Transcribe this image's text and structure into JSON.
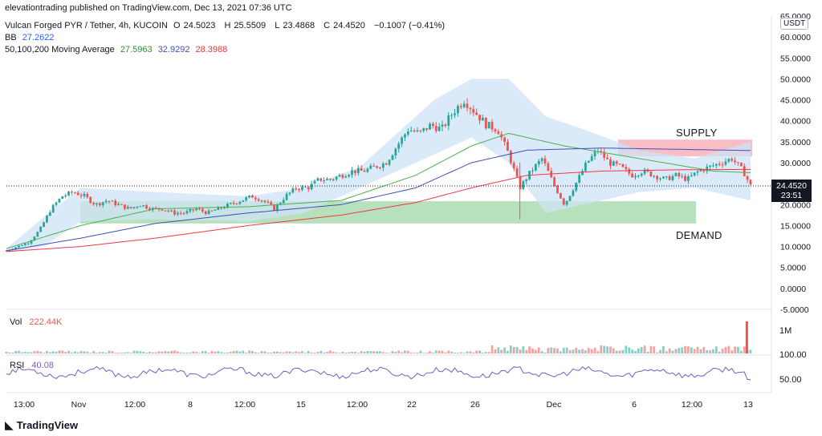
{
  "header": {
    "publisher_line": "elevationtrading published on TradingView.com, Dec 13, 2021 07:36 UTC",
    "symbol": "Vulcan Forged PYR / Tether, 4h, KUCOIN",
    "ohlc": {
      "o_label": "O",
      "o": "24.5023",
      "h_label": "H",
      "h": "25.5509",
      "l_label": "L",
      "l": "23.4868",
      "c_label": "C",
      "c": "24.4520",
      "change": "−0.1007 (−0.41%)"
    },
    "bb_label": "BB",
    "bb_value": "27.2622",
    "ma_label": "50,100,200 Moving Average",
    "ma50": "27.5963",
    "ma100": "32.9292",
    "ma200": "28.3988"
  },
  "currency_badge": "USDT",
  "current_price": "24.4520",
  "countdown": "23:51",
  "zones": {
    "supply": "SUPPLY",
    "demand": "DEMAND"
  },
  "volume": {
    "label": "Vol",
    "value": "222.44K",
    "axis_labels": [
      "1M",
      "100.00"
    ]
  },
  "rsi": {
    "label": "RSI",
    "value": "40.08",
    "axis_label": "50.00"
  },
  "logo": "TradingView",
  "colors": {
    "bb_value": "#2962ff",
    "ma50": "#4caf50",
    "ma100": "#3f51b5",
    "ma200": "#f23645",
    "up": "#26a69a",
    "down": "#ef5350",
    "bb_fill": "#cfe3f6",
    "supply": "#f7b3b8",
    "demand": "#a9dcb0",
    "rsi_line": "#7e57c2"
  },
  "chart_data": {
    "type": "candlestick",
    "x_ticks": [
      "13:00",
      "Nov",
      "12:00",
      "8",
      "12:00",
      "15",
      "12:00",
      "22",
      "26",
      "Dec",
      "6",
      "12:00",
      "13"
    ],
    "y_ticks": [
      -5,
      0,
      5,
      10,
      15,
      20,
      25,
      30,
      35,
      40,
      45,
      50,
      55,
      60,
      65
    ],
    "y_tick_labels": [
      "-5.0000",
      "0.0000",
      "5.0000",
      "10.0000",
      "15.0000",
      "20.0000",
      "25.0000",
      "30.0000",
      "35.0000",
      "40.0000",
      "45.0000",
      "50.0000",
      "55.0000",
      "60.0000",
      "65.0000"
    ],
    "ylim": [
      -5,
      65
    ],
    "close_path": [
      [
        0,
        9
      ],
      [
        6,
        10
      ],
      [
        12,
        11
      ],
      [
        18,
        14
      ],
      [
        24,
        19
      ],
      [
        30,
        22
      ],
      [
        36,
        23
      ],
      [
        42,
        22
      ],
      [
        48,
        20
      ],
      [
        54,
        21
      ],
      [
        60,
        20
      ],
      [
        66,
        19
      ],
      [
        72,
        20
      ],
      [
        78,
        19
      ],
      [
        84,
        19
      ],
      [
        90,
        18
      ],
      [
        96,
        18
      ],
      [
        102,
        19
      ],
      [
        108,
        18
      ],
      [
        114,
        19
      ],
      [
        120,
        20
      ],
      [
        126,
        21
      ],
      [
        132,
        22
      ],
      [
        138,
        21
      ],
      [
        144,
        19
      ],
      [
        150,
        22
      ],
      [
        156,
        24
      ],
      [
        162,
        24
      ],
      [
        168,
        26
      ],
      [
        174,
        26
      ],
      [
        180,
        27
      ],
      [
        186,
        28
      ],
      [
        192,
        28
      ],
      [
        198,
        29
      ],
      [
        204,
        30
      ],
      [
        210,
        34
      ],
      [
        216,
        38
      ],
      [
        222,
        37
      ],
      [
        228,
        39
      ],
      [
        234,
        38
      ],
      [
        240,
        42
      ],
      [
        246,
        45
      ],
      [
        252,
        42
      ],
      [
        258,
        39
      ],
      [
        264,
        38
      ],
      [
        270,
        32
      ],
      [
        276,
        24
      ],
      [
        282,
        28
      ],
      [
        288,
        31
      ],
      [
        294,
        25
      ],
      [
        300,
        20
      ],
      [
        306,
        25
      ],
      [
        312,
        30
      ],
      [
        318,
        33
      ],
      [
        324,
        30
      ],
      [
        330,
        29
      ],
      [
        336,
        27
      ],
      [
        342,
        28
      ],
      [
        348,
        27
      ],
      [
        354,
        26
      ],
      [
        360,
        27
      ],
      [
        366,
        26
      ],
      [
        372,
        28
      ],
      [
        378,
        29
      ],
      [
        384,
        30
      ],
      [
        390,
        31
      ],
      [
        396,
        28
      ],
      [
        400,
        24.5
      ]
    ],
    "ma50": [
      [
        0,
        9.5
      ],
      [
        40,
        15
      ],
      [
        80,
        19
      ],
      [
        130,
        19.5
      ],
      [
        180,
        21
      ],
      [
        220,
        27
      ],
      [
        250,
        34
      ],
      [
        270,
        37
      ],
      [
        300,
        34
      ],
      [
        340,
        31
      ],
      [
        380,
        28
      ],
      [
        400,
        27.6
      ]
    ],
    "ma100": [
      [
        0,
        9
      ],
      [
        40,
        12
      ],
      [
        80,
        15.5
      ],
      [
        130,
        18
      ],
      [
        180,
        20
      ],
      [
        220,
        24
      ],
      [
        250,
        30
      ],
      [
        280,
        33
      ],
      [
        320,
        33.5
      ],
      [
        360,
        33.2
      ],
      [
        400,
        32.9
      ]
    ],
    "ma200": [
      [
        0,
        8.8
      ],
      [
        40,
        10
      ],
      [
        80,
        12
      ],
      [
        130,
        15
      ],
      [
        180,
        17.5
      ],
      [
        220,
        20.5
      ],
      [
        250,
        24
      ],
      [
        280,
        27
      ],
      [
        320,
        28
      ],
      [
        360,
        28.3
      ],
      [
        400,
        28.4
      ]
    ],
    "bb_upper": [
      [
        0,
        9.5
      ],
      [
        20,
        17
      ],
      [
        40,
        24
      ],
      [
        80,
        23
      ],
      [
        130,
        22
      ],
      [
        160,
        24
      ],
      [
        190,
        29
      ],
      [
        210,
        37
      ],
      [
        230,
        45
      ],
      [
        250,
        50
      ],
      [
        270,
        50
      ],
      [
        290,
        41
      ],
      [
        310,
        38
      ],
      [
        340,
        33
      ],
      [
        370,
        31
      ],
      [
        400,
        35
      ]
    ],
    "bb_lower": [
      [
        0,
        8.5
      ],
      [
        20,
        10
      ],
      [
        40,
        16
      ],
      [
        80,
        16.5
      ],
      [
        130,
        16
      ],
      [
        160,
        18
      ],
      [
        190,
        24
      ],
      [
        210,
        28
      ],
      [
        230,
        32
      ],
      [
        250,
        36
      ],
      [
        270,
        30
      ],
      [
        290,
        18
      ],
      [
        310,
        20
      ],
      [
        340,
        23
      ],
      [
        370,
        24
      ],
      [
        400,
        21
      ]
    ],
    "supply_zone": [
      31.5,
      35.5
    ],
    "demand_zone": [
      15.5,
      20.8
    ],
    "volume_spike": 1500000,
    "rsi_last": 40.08
  }
}
